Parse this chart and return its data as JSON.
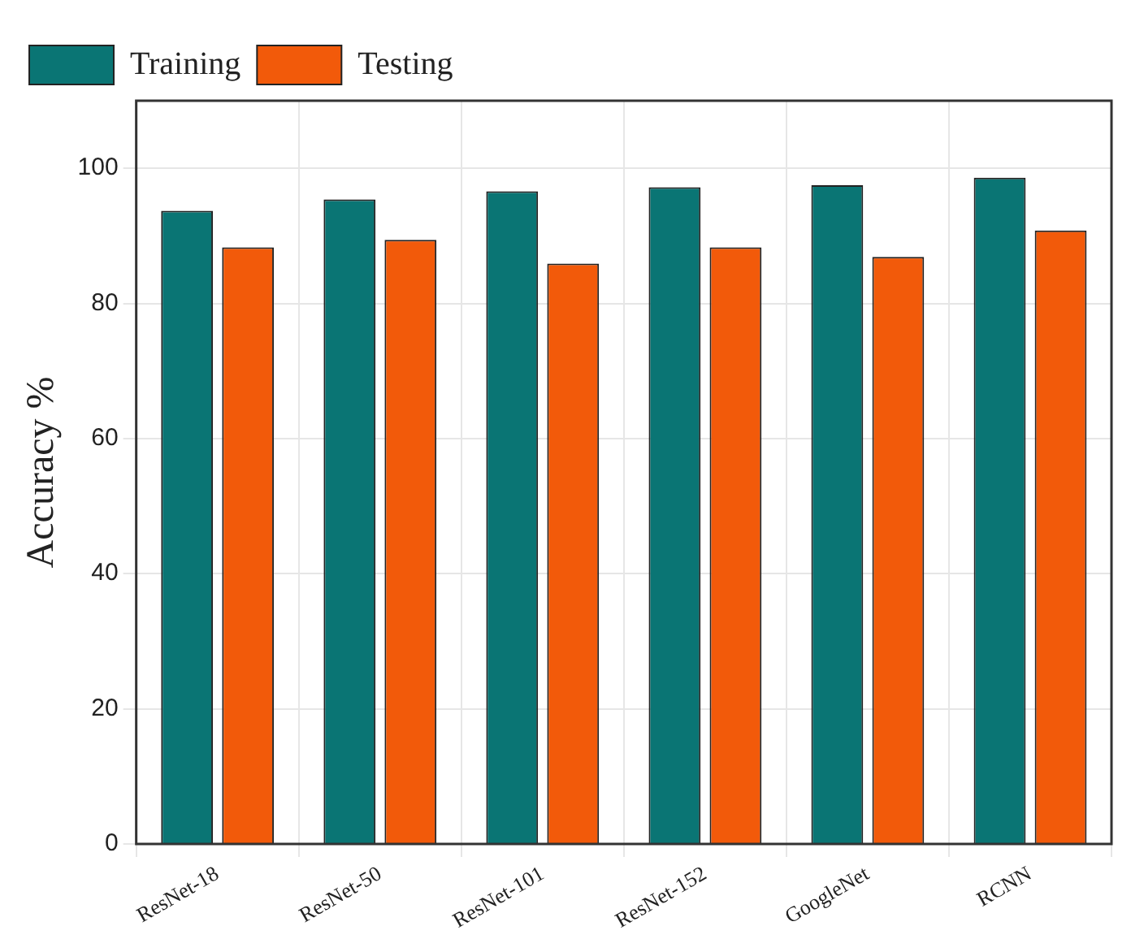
{
  "chart_data": {
    "type": "bar",
    "ylabel": "Accuracy %",
    "categories": [
      "ResNet-18",
      "ResNet-50",
      "ResNet-101",
      "ResNet-152",
      "GoogleNet",
      "RCNN"
    ],
    "series": [
      {
        "name": "Training",
        "color": "#0a7574",
        "values": [
          93.7,
          95.4,
          96.6,
          97.2,
          97.5,
          98.6
        ]
      },
      {
        "name": "Testing",
        "color": "#f25a0a",
        "values": [
          88.3,
          89.4,
          85.9,
          88.3,
          86.9,
          90.8
        ]
      }
    ],
    "ylim": [
      0,
      110
    ],
    "yticks": [
      0,
      20,
      40,
      60,
      80,
      100
    ],
    "grid": true,
    "legend": "top left"
  }
}
